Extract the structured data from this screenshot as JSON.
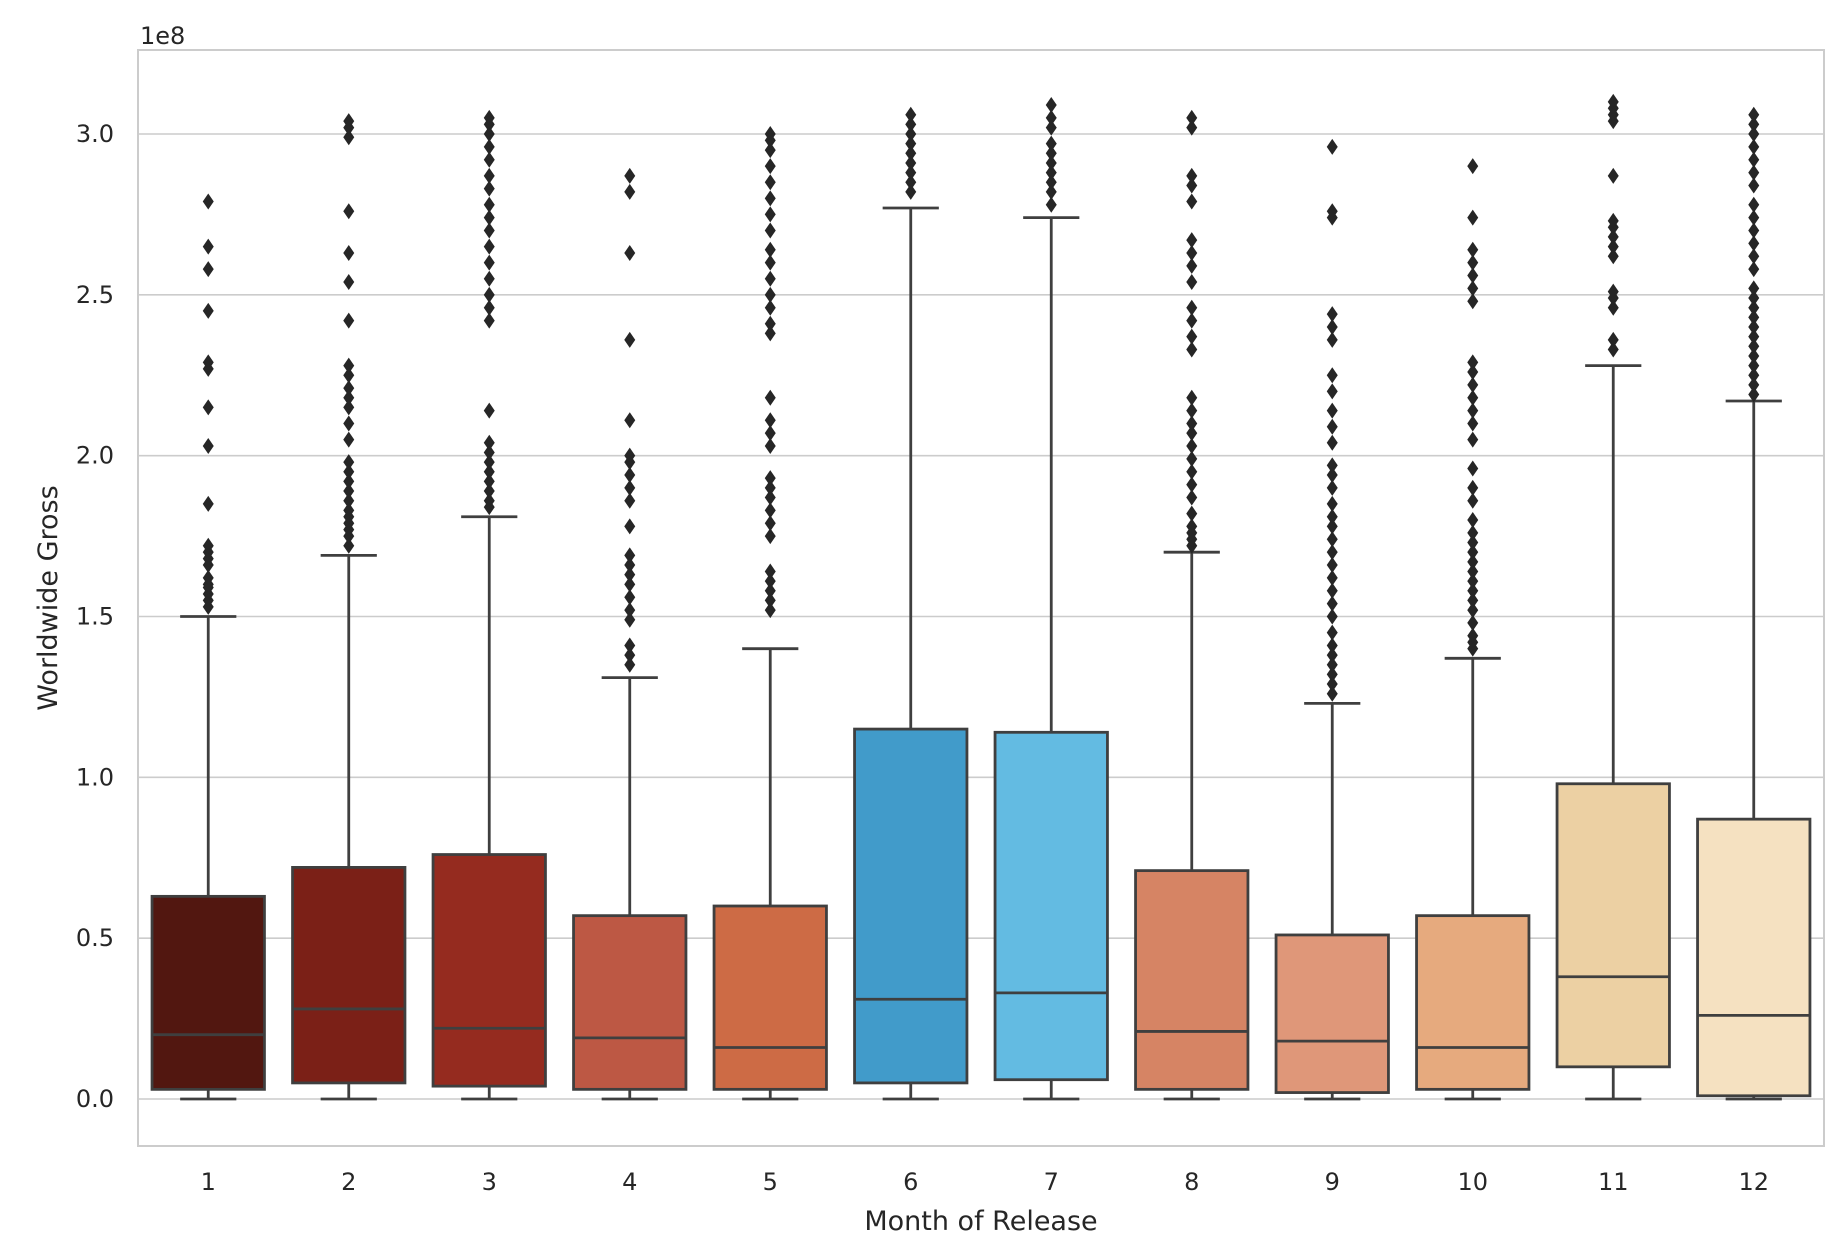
{
  "chart_data": {
    "type": "box",
    "title": "",
    "xlabel": "Month of Release",
    "ylabel": "Worldwide Gross",
    "offset_label": "1e8",
    "ylim": [
      -0.15,
      3.22
    ],
    "yticks": [
      0.0,
      0.5,
      1.0,
      1.5,
      2.0,
      2.5,
      3.0
    ],
    "ytick_labels": [
      "0.0",
      "0.5",
      "1.0",
      "1.5",
      "2.0",
      "2.5",
      "3.0"
    ],
    "grid": true,
    "units_note": "values in units of 1e8",
    "categories": [
      "1",
      "2",
      "3",
      "4",
      "5",
      "6",
      "7",
      "8",
      "9",
      "10",
      "11",
      "12"
    ],
    "colors": [
      "#521710",
      "#7b2017",
      "#952b1f",
      "#bd5844",
      "#cd6b45",
      "#419bca",
      "#63bbe2",
      "#d68464",
      "#df9779",
      "#e6aa7e",
      "#ecd0a3",
      "#f5e1c1"
    ],
    "boxes": [
      {
        "month": "1",
        "min": 0.0,
        "q1": 0.03,
        "median": 0.2,
        "q3": 0.63,
        "max": 1.5,
        "outliers": [
          1.53,
          1.55,
          1.57,
          1.59,
          1.6,
          1.62,
          1.66,
          1.68,
          1.7,
          1.72,
          1.85,
          2.03,
          2.15,
          2.27,
          2.29,
          2.45,
          2.58,
          2.65,
          2.79
        ]
      },
      {
        "month": "2",
        "min": 0.0,
        "q1": 0.05,
        "median": 0.28,
        "q3": 0.72,
        "max": 1.69,
        "outliers": [
          1.72,
          1.75,
          1.77,
          1.79,
          1.81,
          1.83,
          1.86,
          1.89,
          1.92,
          1.95,
          1.98,
          2.05,
          2.1,
          2.15,
          2.18,
          2.21,
          2.25,
          2.28,
          2.42,
          2.54,
          2.63,
          2.76,
          2.99,
          3.02,
          3.04
        ]
      },
      {
        "month": "3",
        "min": 0.0,
        "q1": 0.04,
        "median": 0.22,
        "q3": 0.76,
        "max": 1.81,
        "outliers": [
          1.84,
          1.86,
          1.89,
          1.92,
          1.95,
          1.98,
          2.01,
          2.04,
          2.14,
          2.42,
          2.46,
          2.5,
          2.55,
          2.6,
          2.65,
          2.7,
          2.74,
          2.78,
          2.83,
          2.87,
          2.92,
          2.96,
          3.0,
          3.03,
          3.05
        ]
      },
      {
        "month": "4",
        "min": 0.0,
        "q1": 0.03,
        "median": 0.19,
        "q3": 0.57,
        "max": 1.31,
        "outliers": [
          1.35,
          1.38,
          1.41,
          1.49,
          1.52,
          1.56,
          1.6,
          1.63,
          1.66,
          1.69,
          1.78,
          1.86,
          1.9,
          1.94,
          1.98,
          2.0,
          2.11,
          2.36,
          2.63,
          2.82,
          2.87
        ]
      },
      {
        "month": "5",
        "min": 0.0,
        "q1": 0.03,
        "median": 0.16,
        "q3": 0.6,
        "max": 1.4,
        "outliers": [
          1.52,
          1.55,
          1.58,
          1.61,
          1.64,
          1.75,
          1.79,
          1.83,
          1.87,
          1.9,
          1.93,
          2.03,
          2.07,
          2.11,
          2.18,
          2.38,
          2.41,
          2.46,
          2.5,
          2.55,
          2.6,
          2.64,
          2.7,
          2.75,
          2.8,
          2.85,
          2.9,
          2.95,
          2.98,
          3.0
        ]
      },
      {
        "month": "6",
        "min": 0.0,
        "q1": 0.05,
        "median": 0.31,
        "q3": 1.15,
        "max": 2.77,
        "outliers": [
          2.82,
          2.85,
          2.88,
          2.91,
          2.94,
          2.97,
          3.0,
          3.03,
          3.06
        ]
      },
      {
        "month": "7",
        "min": 0.0,
        "q1": 0.06,
        "median": 0.33,
        "q3": 1.14,
        "max": 2.74,
        "outliers": [
          2.78,
          2.82,
          2.85,
          2.88,
          2.91,
          2.94,
          2.97,
          3.02,
          3.05,
          3.09
        ]
      },
      {
        "month": "8",
        "min": 0.0,
        "q1": 0.03,
        "median": 0.21,
        "q3": 0.71,
        "max": 1.7,
        "outliers": [
          1.72,
          1.74,
          1.76,
          1.78,
          1.82,
          1.87,
          1.91,
          1.95,
          1.99,
          2.03,
          2.07,
          2.1,
          2.14,
          2.18,
          2.33,
          2.37,
          2.42,
          2.46,
          2.54,
          2.59,
          2.63,
          2.67,
          2.79,
          2.84,
          2.87,
          3.02,
          3.05
        ]
      },
      {
        "month": "9",
        "min": 0.0,
        "q1": 0.02,
        "median": 0.18,
        "q3": 0.51,
        "max": 1.23,
        "outliers": [
          1.26,
          1.29,
          1.32,
          1.35,
          1.38,
          1.41,
          1.45,
          1.5,
          1.54,
          1.58,
          1.62,
          1.66,
          1.7,
          1.74,
          1.78,
          1.81,
          1.85,
          1.9,
          1.94,
          1.97,
          2.04,
          2.09,
          2.14,
          2.2,
          2.25,
          2.36,
          2.4,
          2.44,
          2.74,
          2.76,
          2.96
        ]
      },
      {
        "month": "10",
        "min": 0.0,
        "q1": 0.03,
        "median": 0.16,
        "q3": 0.57,
        "max": 1.37,
        "outliers": [
          1.4,
          1.42,
          1.44,
          1.48,
          1.52,
          1.55,
          1.58,
          1.61,
          1.64,
          1.67,
          1.7,
          1.73,
          1.76,
          1.8,
          1.86,
          1.9,
          1.96,
          2.05,
          2.1,
          2.14,
          2.18,
          2.22,
          2.26,
          2.29,
          2.48,
          2.52,
          2.56,
          2.6,
          2.64,
          2.74,
          2.9
        ]
      },
      {
        "month": "11",
        "min": 0.0,
        "q1": 0.1,
        "median": 0.38,
        "q3": 0.98,
        "max": 2.28,
        "outliers": [
          2.33,
          2.36,
          2.46,
          2.49,
          2.51,
          2.62,
          2.65,
          2.68,
          2.71,
          2.73,
          2.87,
          3.04,
          3.06,
          3.08,
          3.1
        ]
      },
      {
        "month": "12",
        "min": 0.0,
        "q1": 0.01,
        "median": 0.26,
        "q3": 0.87,
        "max": 2.17,
        "outliers": [
          2.19,
          2.22,
          2.25,
          2.28,
          2.31,
          2.34,
          2.37,
          2.4,
          2.43,
          2.46,
          2.49,
          2.52,
          2.58,
          2.62,
          2.66,
          2.7,
          2.74,
          2.78,
          2.84,
          2.88,
          2.92,
          2.96,
          3.0,
          3.03,
          3.06
        ]
      }
    ]
  }
}
